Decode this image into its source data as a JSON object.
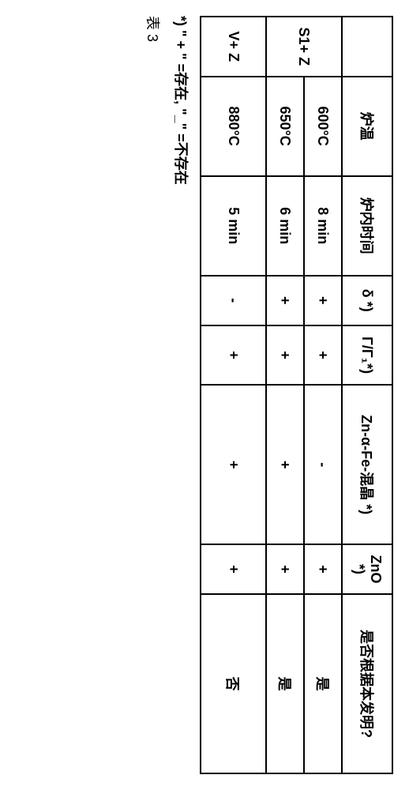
{
  "table": {
    "headers": {
      "blank": "",
      "temp": "炉温",
      "time": "炉内时间",
      "delta": "δ *)",
      "gamma": "Γ/Γ₁*)",
      "zn": "Zn-α-Fe-混晶 *)",
      "zno": "ZnO *)",
      "inv": "是否根据本发明?"
    },
    "rows": [
      {
        "group": "S1+ Z",
        "group_rowspan": 2,
        "temp": "600°C",
        "time": "8 min",
        "delta": "+",
        "gamma": "+",
        "zn": "-",
        "zno": "+",
        "inv": "是"
      },
      {
        "temp": "650°C",
        "time": "6 min",
        "delta": "+",
        "gamma": "+",
        "zn": "+",
        "zno": "+",
        "inv": "是"
      },
      {
        "group": "V+ Z",
        "group_rowspan": 1,
        "temp": "880°C",
        "time": "5 min",
        "delta": "-",
        "gamma": "+",
        "zn": "+",
        "zno": "+",
        "inv": "否"
      }
    ],
    "footnote": "*) \" + \" =存在, \"_\" =不存在",
    "tablenum": "表 3"
  },
  "colors": {
    "border": "#000000",
    "background": "#ffffff",
    "text": "#000000"
  }
}
